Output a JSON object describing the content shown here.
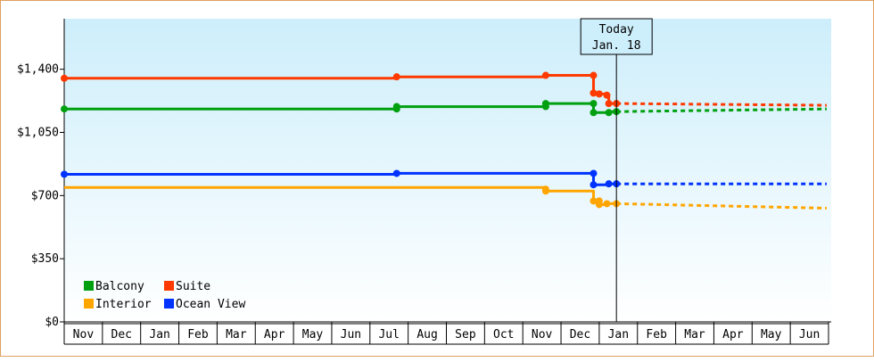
{
  "chart_data": {
    "type": "line",
    "title": "",
    "xlabel": "",
    "ylabel": "",
    "ylim": [
      0,
      1680
    ],
    "y_ticks": [
      0,
      350,
      700,
      1050,
      1400
    ],
    "y_tick_labels": [
      "$0",
      "$350",
      "$700",
      "$1,050",
      "$1,400"
    ],
    "x_tick_labels": [
      "Nov",
      "Dec",
      "Jan",
      "Feb",
      "Mar",
      "Apr",
      "May",
      "Jun",
      "Jul",
      "Aug",
      "Sep",
      "Oct",
      "Nov",
      "Dec",
      "Jan",
      "Feb",
      "Mar",
      "Apr",
      "May",
      "Jun"
    ],
    "x_unit": "month index (0 = first Nov)",
    "today": {
      "x": 14.45,
      "line1": "Today",
      "line2": "Jan. 18"
    },
    "background_gradient": [
      "#cdeefb",
      "#ffffff"
    ],
    "grid": false,
    "legend_placement": "bottom-left",
    "series": [
      {
        "name": "Suite",
        "color": "#ff3a00",
        "points": [
          [
            0,
            1350
          ],
          [
            8.7,
            1350
          ],
          [
            8.7,
            1358
          ],
          [
            12.6,
            1358
          ],
          [
            12.6,
            1366
          ],
          [
            13.85,
            1366
          ],
          [
            13.85,
            1268
          ],
          [
            14.0,
            1268
          ],
          [
            14.0,
            1263
          ],
          [
            14.2,
            1263
          ],
          [
            14.2,
            1256
          ],
          [
            14.25,
            1256
          ],
          [
            14.25,
            1210
          ],
          [
            14.45,
            1210
          ]
        ],
        "markers": [
          [
            0,
            1350
          ],
          [
            8.7,
            1358
          ],
          [
            12.6,
            1366
          ],
          [
            13.85,
            1366
          ],
          [
            13.85,
            1268
          ],
          [
            14.0,
            1263
          ],
          [
            14.2,
            1256
          ],
          [
            14.25,
            1210
          ],
          [
            14.45,
            1210
          ]
        ],
        "projection": [
          [
            14.45,
            1210
          ],
          [
            19.95,
            1200
          ]
        ]
      },
      {
        "name": "Balcony",
        "color": "#00a010",
        "points": [
          [
            0,
            1180
          ],
          [
            8.7,
            1180
          ],
          [
            8.7,
            1193
          ],
          [
            12.6,
            1193
          ],
          [
            12.6,
            1210
          ],
          [
            13.85,
            1210
          ],
          [
            13.85,
            1160
          ],
          [
            14.25,
            1160
          ],
          [
            14.25,
            1165
          ],
          [
            14.45,
            1165
          ]
        ],
        "markers": [
          [
            0,
            1180
          ],
          [
            8.7,
            1180
          ],
          [
            8.7,
            1193
          ],
          [
            12.6,
            1193
          ],
          [
            12.6,
            1210
          ],
          [
            13.85,
            1210
          ],
          [
            13.85,
            1160
          ],
          [
            14.25,
            1160
          ],
          [
            14.45,
            1165
          ]
        ],
        "projection": [
          [
            14.45,
            1165
          ],
          [
            19.95,
            1180
          ]
        ]
      },
      {
        "name": "Ocean View",
        "color": "#0033ff",
        "points": [
          [
            0,
            818
          ],
          [
            8.7,
            818
          ],
          [
            8.7,
            823
          ],
          [
            13.85,
            823
          ],
          [
            13.85,
            760
          ],
          [
            14.25,
            760
          ],
          [
            14.25,
            765
          ],
          [
            14.45,
            765
          ]
        ],
        "markers": [
          [
            0,
            818
          ],
          [
            8.7,
            823
          ],
          [
            13.85,
            823
          ],
          [
            13.85,
            760
          ],
          [
            14.25,
            765
          ],
          [
            14.45,
            765
          ]
        ],
        "projection": [
          [
            14.45,
            765
          ],
          [
            19.95,
            765
          ]
        ]
      },
      {
        "name": "Interior",
        "color": "#ffa500",
        "points": [
          [
            0,
            745
          ],
          [
            12.6,
            745
          ],
          [
            12.6,
            725
          ],
          [
            13.85,
            725
          ],
          [
            13.85,
            670
          ],
          [
            14.0,
            670
          ],
          [
            14.0,
            650
          ],
          [
            14.2,
            650
          ],
          [
            14.2,
            655
          ],
          [
            14.45,
            655
          ]
        ],
        "markers": [
          [
            12.6,
            735
          ],
          [
            12.6,
            725
          ],
          [
            13.85,
            670
          ],
          [
            14.0,
            670
          ],
          [
            14.0,
            650
          ],
          [
            14.2,
            655
          ],
          [
            14.45,
            655
          ]
        ],
        "projection": [
          [
            14.45,
            655
          ],
          [
            19.95,
            630
          ]
        ]
      }
    ],
    "legend": [
      {
        "label": "Balcony",
        "color": "#00a010",
        "col": 0,
        "row": 0
      },
      {
        "label": "Suite",
        "color": "#ff3a00",
        "col": 1,
        "row": 0
      },
      {
        "label": "Interior",
        "color": "#ffa500",
        "col": 0,
        "row": 1
      },
      {
        "label": "Ocean View",
        "color": "#0033ff",
        "col": 1,
        "row": 1
      }
    ]
  }
}
